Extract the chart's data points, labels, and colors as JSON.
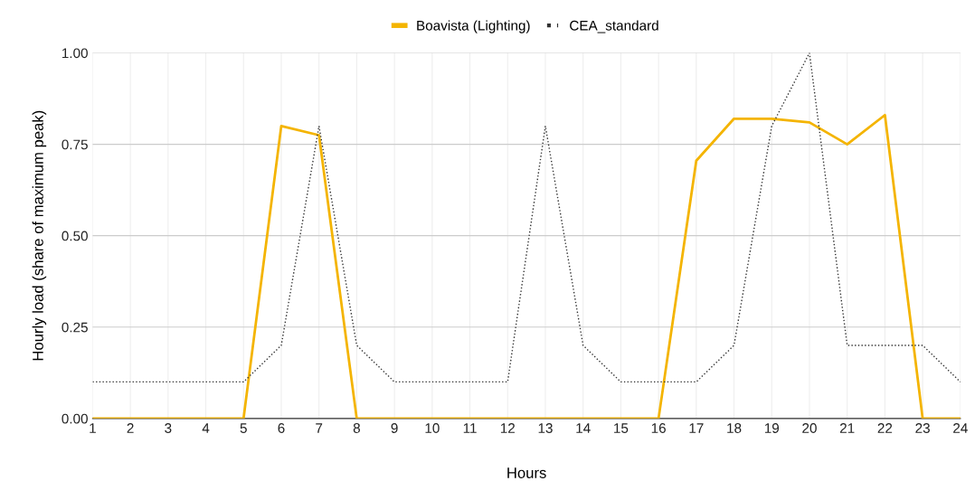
{
  "chart_data": {
    "type": "line",
    "xlabel": "Hours",
    "ylabel": "Hourly load (share of maximum peak)",
    "x": [
      1,
      2,
      3,
      4,
      5,
      6,
      7,
      8,
      9,
      10,
      11,
      12,
      13,
      14,
      15,
      16,
      17,
      18,
      19,
      20,
      21,
      22,
      23,
      24
    ],
    "series": [
      {
        "name": "Boavista (Lighting)",
        "color": "#f4b400",
        "line_style": "solid",
        "values": [
          0,
          0,
          0,
          0,
          0,
          0.8,
          0.775,
          0,
          0,
          0,
          0,
          0,
          0,
          0,
          0,
          0,
          0.705,
          0.82,
          0.82,
          0.81,
          0.75,
          0.83,
          0,
          0
        ]
      },
      {
        "name": "CEA_standard",
        "color": "#333333",
        "line_style": "dotted",
        "values": [
          0.1,
          0.1,
          0.1,
          0.1,
          0.1,
          0.2,
          0.8,
          0.2,
          0.1,
          0.1,
          0.1,
          0.1,
          0.8,
          0.2,
          0.1,
          0.1,
          0.1,
          0.2,
          0.8,
          1.0,
          0.2,
          0.2,
          0.2,
          0.1
        ]
      }
    ],
    "xlim": [
      1,
      24
    ],
    "xticks": [
      1,
      2,
      3,
      4,
      5,
      6,
      7,
      8,
      9,
      10,
      11,
      12,
      13,
      14,
      15,
      16,
      17,
      18,
      19,
      20,
      21,
      22,
      23,
      24
    ],
    "ylim": [
      0,
      1
    ],
    "yticks": [
      {
        "value": 0,
        "label": "0.00"
      },
      {
        "value": 0.25,
        "label": "0.25"
      },
      {
        "value": 0.5,
        "label": "0.50"
      },
      {
        "value": 0.75,
        "label": "0.75"
      },
      {
        "value": 1,
        "label": "1.00"
      }
    ],
    "grid": true,
    "legend": "top",
    "marker": "none"
  }
}
